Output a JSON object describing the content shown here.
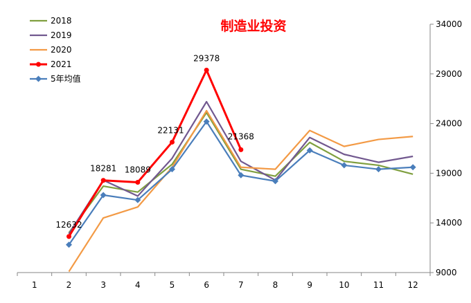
{
  "chart_data": {
    "type": "line",
    "title": "制造业投资",
    "categories": [
      "1",
      "2",
      "3",
      "4",
      "5",
      "6",
      "7",
      "8",
      "9",
      "10",
      "11",
      "12"
    ],
    "y_axis": {
      "side": "right",
      "min": 9000,
      "max": 34000,
      "ticks": [
        9000,
        14000,
        19000,
        24000,
        29000,
        34000
      ]
    },
    "grid": false,
    "legend_position": "top-left",
    "series": [
      {
        "name": "2018",
        "color": "#7f9f3f",
        "values": [
          null,
          13000,
          17700,
          17100,
          19900,
          25100,
          19400,
          18700,
          22100,
          20200,
          19800,
          18900
        ]
      },
      {
        "name": "2019",
        "color": "#71588f",
        "values": [
          null,
          12900,
          18300,
          16700,
          20500,
          26200,
          20200,
          18300,
          22600,
          20900,
          20100,
          20700
        ]
      },
      {
        "name": "2020",
        "color": "#f39a45",
        "values": [
          null,
          9100,
          14500,
          15600,
          19600,
          25300,
          19600,
          19400,
          23300,
          21700,
          22400,
          22700
        ]
      },
      {
        "name": "2021",
        "color": "#ff0000",
        "marker": "circle",
        "values": [
          null,
          12632,
          18281,
          18089,
          22131,
          29378,
          21368,
          null,
          null,
          null,
          null,
          null
        ],
        "labels": [
          "",
          "12632",
          "18281",
          "18089",
          "22131",
          "29378",
          "21368",
          "",
          "",
          "",
          "",
          ""
        ]
      },
      {
        "name": "5年均值",
        "color": "#4a7ebb",
        "marker": "diamond",
        "values": [
          null,
          11800,
          16800,
          16300,
          19400,
          24200,
          18800,
          18200,
          21300,
          19800,
          19400,
          19600
        ]
      }
    ]
  }
}
